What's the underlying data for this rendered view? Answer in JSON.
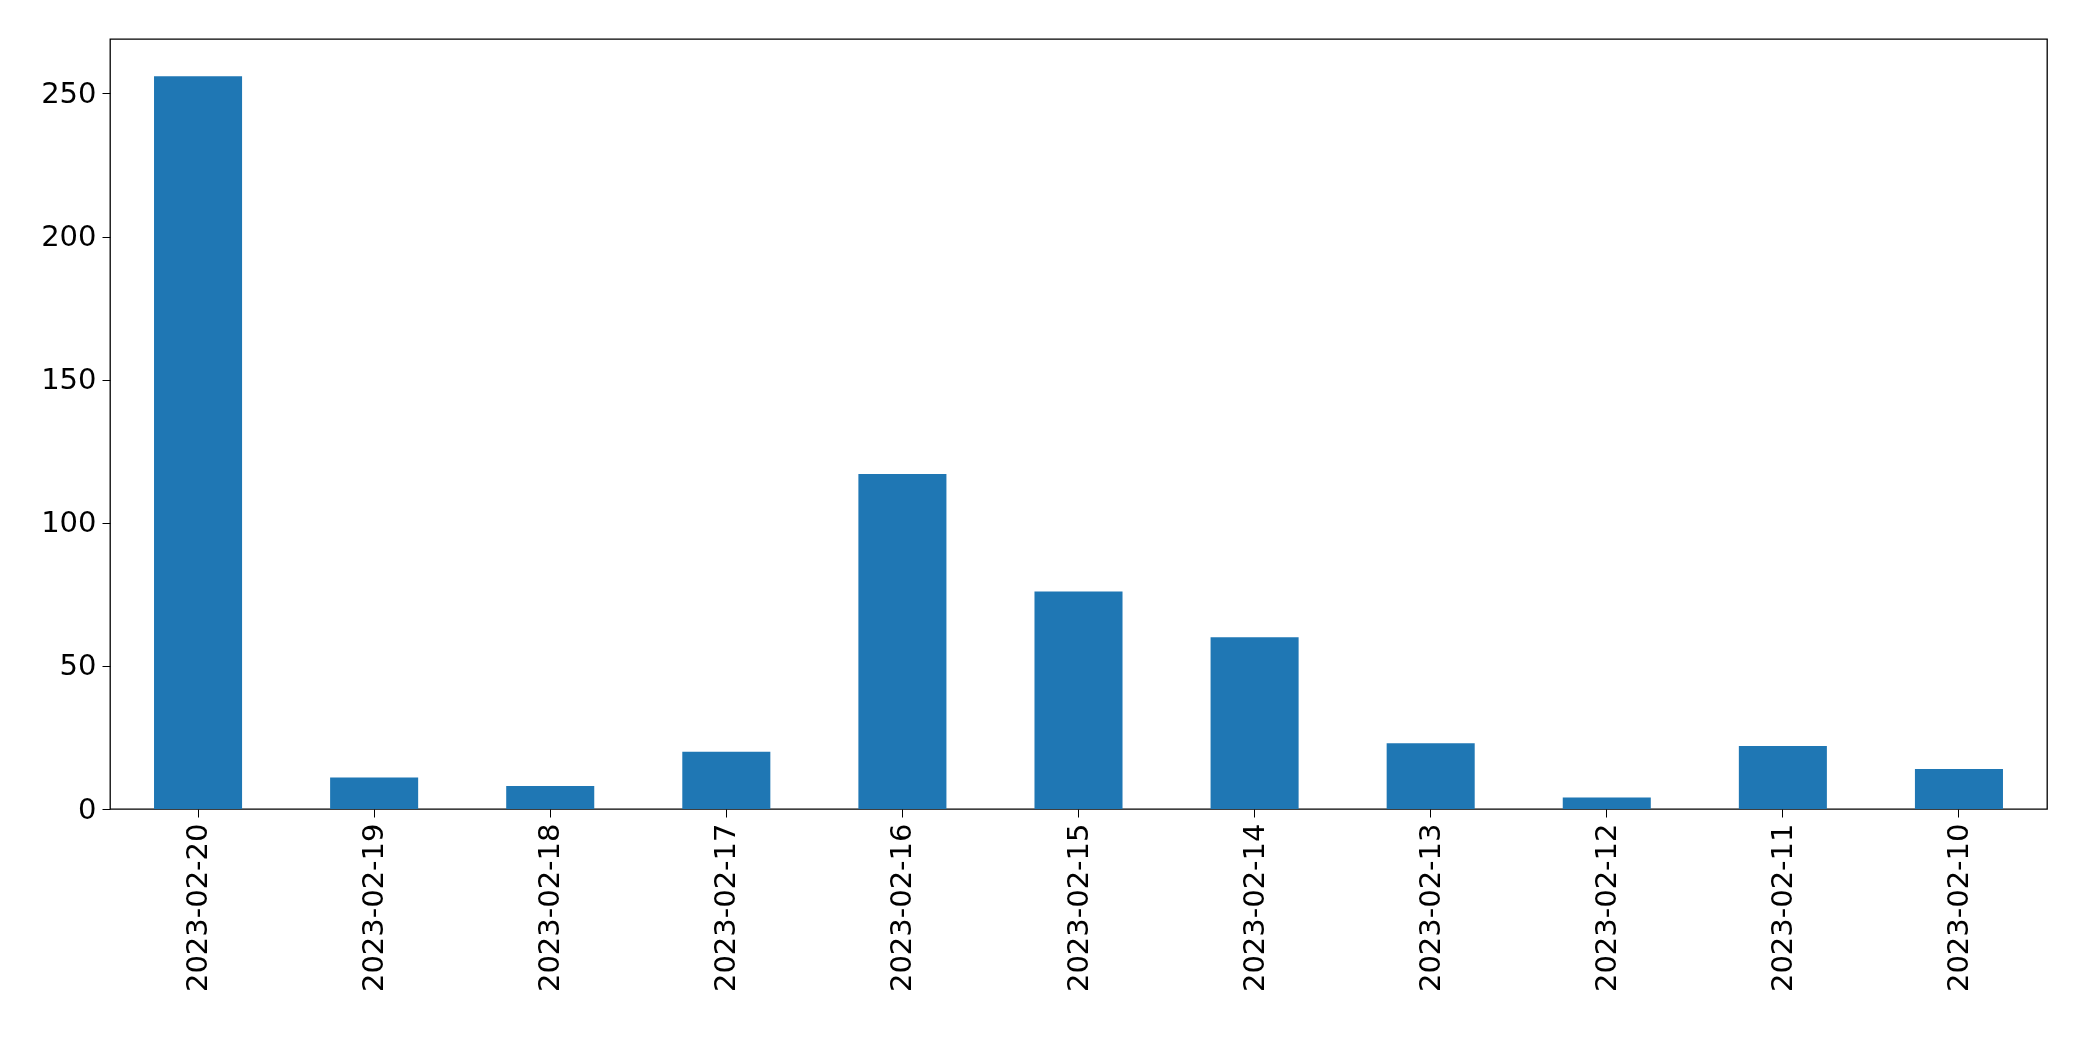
{
  "chart_data": {
    "type": "bar",
    "categories": [
      "2023-02-20",
      "2023-02-19",
      "2023-02-18",
      "2023-02-17",
      "2023-02-16",
      "2023-02-15",
      "2023-02-14",
      "2023-02-13",
      "2023-02-12",
      "2023-02-11",
      "2023-02-10"
    ],
    "values": [
      256,
      11,
      8,
      20,
      117,
      76,
      60,
      23,
      4,
      22,
      14
    ],
    "color": "#1f77b4",
    "ylim": [
      0,
      269
    ],
    "yticks": [
      0,
      50,
      100,
      150,
      200,
      250
    ],
    "grid": false
  }
}
